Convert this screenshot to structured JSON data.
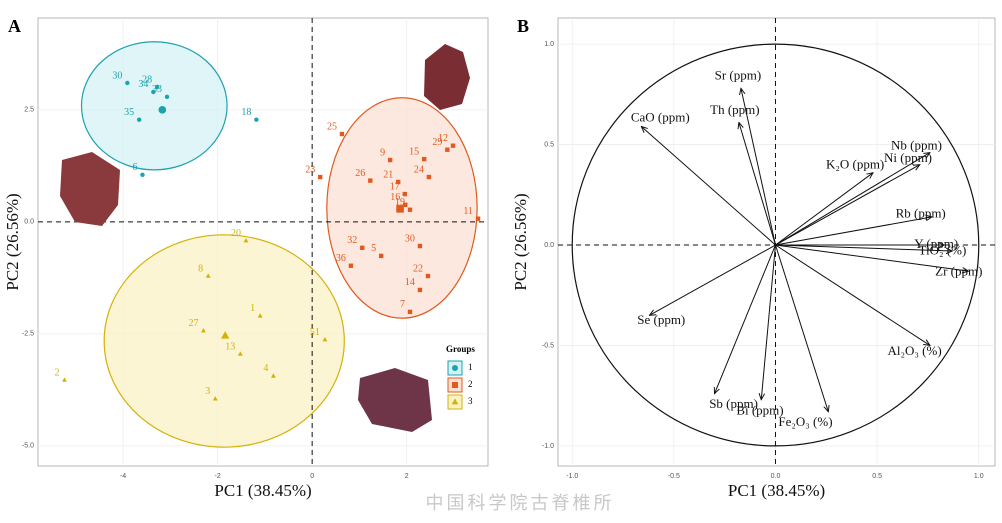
{
  "chart_data": [
    {
      "type": "scatter",
      "panel": "A",
      "xlabel": "PC1 (38.45%)",
      "ylabel": "PC2 (26.56%)",
      "xlim": [
        -5.8,
        3.72
      ],
      "ylim": [
        -5.45,
        4.55
      ],
      "xticks": [
        -4,
        -2,
        0,
        2
      ],
      "yticks": [
        {
          "value": -5,
          "label": "-5.0"
        },
        -2.5,
        {
          "value": 0,
          "label": "0.0"
        },
        2.5
      ],
      "grid": true,
      "legend_title": "Groups",
      "legend": "lower right",
      "series": [
        {
          "name": "1",
          "color": "#1ba3b0",
          "fill": "#d6f1f4",
          "marker": "circle",
          "labels": [
            "30",
            "28",
            "34",
            "33",
            "35",
            "18",
            "6"
          ],
          "x": [
            -3.91,
            -3.28,
            -3.36,
            -3.07,
            -3.66,
            -1.18,
            -3.59
          ],
          "values": [
            3.1,
            3.01,
            2.9,
            2.79,
            2.28,
            2.28,
            1.05
          ],
          "centroid": [
            -3.17,
            2.5
          ],
          "ellipse": {
            "cx": -3.34,
            "cy": 2.59,
            "rx": 1.54,
            "ry": 1.43
          }
        },
        {
          "name": "2",
          "color": "#e05a1f",
          "fill": "#fbe0d3",
          "marker": "square",
          "labels": [
            "25",
            "12",
            "15",
            "29",
            "23",
            "9",
            "21",
            "26",
            "24",
            "17",
            "16",
            "19",
            "11",
            "30",
            "32",
            "5",
            "36",
            "22",
            "14",
            "7"
          ],
          "x": [
            0.63,
            2.98,
            2.37,
            2.86,
            0.17,
            1.65,
            1.82,
            1.23,
            2.47,
            1.96,
            1.97,
            2.07,
            3.51,
            2.28,
            1.06,
            1.46,
            0.82,
            2.45,
            2.28,
            2.07
          ],
          "values": [
            1.96,
            1.7,
            1.4,
            1.61,
            1.0,
            1.38,
            0.89,
            0.92,
            1.0,
            0.62,
            0.38,
            0.27,
            0.07,
            -0.54,
            -0.58,
            -0.76,
            -0.98,
            -1.21,
            -1.52,
            -2.01
          ],
          "centroid": [
            1.86,
            0.29
          ],
          "ellipse": {
            "cx": 1.9,
            "cy": 0.31,
            "rx": 1.59,
            "ry": 2.46
          }
        },
        {
          "name": "3",
          "color": "#d4b106",
          "fill": "#fbf2c6",
          "marker": "triangle",
          "labels": [
            "20",
            "8",
            "27",
            "1",
            "13",
            "51",
            "4",
            "3",
            "2"
          ],
          "x": [
            -1.4,
            -2.2,
            -2.3,
            -1.1,
            -1.52,
            0.27,
            -0.82,
            -2.05,
            -5.24
          ],
          "values": [
            -0.42,
            -1.21,
            -2.43,
            -2.1,
            -2.95,
            -2.63,
            -3.44,
            -3.95,
            -3.53
          ],
          "centroid": [
            -1.84,
            -2.54
          ],
          "ellipse": {
            "cx": -1.86,
            "cy": -2.66,
            "rx": 2.54,
            "ry": 2.37
          }
        }
      ]
    },
    {
      "type": "biplot",
      "panel": "B",
      "xlabel": "PC1 (38.45%)",
      "ylabel": "PC2 (26.56%)",
      "xlim": [
        -1.07,
        1.08
      ],
      "ylim": [
        -1.1,
        1.13
      ],
      "xticks": [
        {
          "value": -1,
          "label": "-1.0"
        },
        -0.5,
        {
          "value": 0,
          "label": "0.0"
        },
        0.5,
        {
          "value": 1,
          "label": "1.0"
        }
      ],
      "yticks": [
        {
          "value": -1,
          "label": "-1.0"
        },
        -0.5,
        {
          "value": 0,
          "label": "0.0"
        },
        0.5,
        {
          "value": 1,
          "label": "1.0"
        }
      ],
      "grid": true,
      "circle_radius": 1,
      "color": "#111111",
      "categories": [
        "Sr (ppm)",
        "Th (ppm)",
        "CaO (ppm)",
        "K₂O (ppm)",
        "Nb (ppm)",
        "Ni (ppm)",
        "Rb (ppm)",
        "Y (ppm)",
        "TiO₂ (%)",
        "Zr (ppm)",
        "Al₂O₃ (%)",
        "Fe₂O₃ (%)",
        "Bi (ppm)",
        "Sb (ppm)",
        "Se (ppm)"
      ],
      "x": [
        -0.17,
        -0.18,
        -0.66,
        0.48,
        0.76,
        0.71,
        0.77,
        0.83,
        0.87,
        0.95,
        0.76,
        0.26,
        -0.07,
        -0.3,
        -0.62
      ],
      "values": [
        0.78,
        0.61,
        0.59,
        0.36,
        0.46,
        0.4,
        0.14,
        0.0,
        -0.03,
        -0.13,
        -0.5,
        -0.83,
        -0.77,
        -0.74,
        -0.35
      ]
    }
  ],
  "watermark": "中国科学院古脊椎所"
}
